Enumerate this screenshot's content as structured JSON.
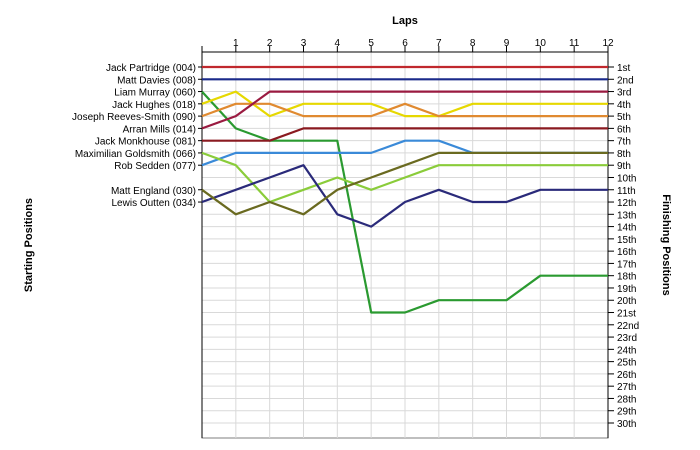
{
  "chart_data": {
    "type": "line",
    "title": "Laps",
    "ylabel_left": "Starting Positions",
    "ylabel_right": "Finishing Positions",
    "laps": [
      1,
      2,
      3,
      4,
      5,
      6,
      7,
      8,
      9,
      10,
      11,
      12
    ],
    "position_labels": [
      "1st",
      "2nd",
      "3rd",
      "4th",
      "5th",
      "6th",
      "7th",
      "8th",
      "9th",
      "10th",
      "11th",
      "12th",
      "13th",
      "14th",
      "15th",
      "16th",
      "17th",
      "18th",
      "19th",
      "20th",
      "21st",
      "22nd",
      "23rd",
      "24th",
      "25th",
      "26th",
      "27th",
      "28th",
      "29th",
      "30th"
    ],
    "series": [
      {
        "name": "Jack Partridge (004)",
        "color": "#c0282d",
        "positions": [
          1,
          1,
          1,
          1,
          1,
          1,
          1,
          1,
          1,
          1,
          1,
          1,
          1
        ]
      },
      {
        "name": "Matt Davies (008)",
        "color": "#1a2a8a",
        "positions": [
          2,
          2,
          2,
          2,
          2,
          2,
          2,
          2,
          2,
          2,
          2,
          2,
          2
        ]
      },
      {
        "name": "Liam Murray (060)",
        "color": "#2a9a30",
        "positions": [
          3,
          6,
          7,
          7,
          7,
          21,
          21,
          20,
          20,
          20,
          18,
          18,
          18
        ]
      },
      {
        "name": "Jack Hughes (018)",
        "color": "#e6d800",
        "positions": [
          4,
          3,
          5,
          4,
          4,
          4,
          5,
          5,
          4,
          4,
          4,
          4,
          4
        ]
      },
      {
        "name": "Joseph Reeves-Smith (090)",
        "color": "#e08a30",
        "positions": [
          5,
          4,
          4,
          5,
          5,
          5,
          4,
          5,
          5,
          5,
          5,
          5,
          5
        ]
      },
      {
        "name": "Arran Mills (014)",
        "color": "#9a1a40",
        "positions": [
          6,
          5,
          3,
          3,
          3,
          3,
          3,
          3,
          3,
          3,
          3,
          3,
          3
        ]
      },
      {
        "name": "Jack Monkhouse (081)",
        "color": "#8a1a20",
        "positions": [
          7,
          7,
          7,
          6,
          6,
          6,
          6,
          6,
          6,
          6,
          6,
          6,
          6
        ]
      },
      {
        "name": "Rob Sedden (077)",
        "color": "#3a8ad8",
        "positions": [
          9,
          8,
          8,
          8,
          8,
          8,
          7,
          7,
          8,
          8,
          8,
          8,
          8
        ]
      },
      {
        "name": "Maximilian Goldsmith (066)",
        "color": "#8acc3a",
        "positions": [
          8,
          9,
          12,
          11,
          10,
          11,
          10,
          9,
          9,
          9,
          9,
          9,
          9
        ]
      },
      {
        "name": "Lewis Outten (034)",
        "color": "#2a2a7a",
        "positions": [
          12,
          11,
          10,
          9,
          13,
          14,
          12,
          11,
          12,
          12,
          11,
          11,
          11
        ]
      },
      {
        "name": "Matt England (030)",
        "color": "#6a6a20",
        "positions": [
          11,
          13,
          12,
          13,
          11,
          10,
          9,
          8,
          8,
          8,
          8,
          8,
          8
        ]
      }
    ]
  }
}
